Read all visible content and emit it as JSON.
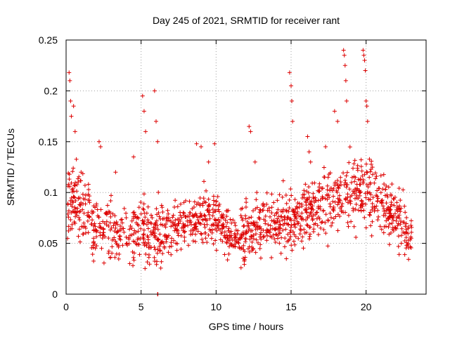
{
  "chart_data": {
    "type": "scatter",
    "title": "Day 245 of 2021, SRMTID for receiver rant",
    "xlabel": "GPS time / hours",
    "ylabel": "SRMTID / TECUs",
    "xlim": [
      0,
      24
    ],
    "ylim": [
      0,
      0.25
    ],
    "x_ticks": [
      0,
      5,
      10,
      15,
      20
    ],
    "x_tick_labels": [
      "0",
      "5",
      "10",
      "15",
      "20"
    ],
    "y_ticks": [
      0,
      0.05,
      0.1,
      0.15,
      0.2,
      0.25
    ],
    "y_tick_labels": [
      "0",
      "0.05",
      "0.1",
      "0.15",
      "0.2",
      "0.25"
    ],
    "grid": true,
    "marker": "+",
    "series_color": "#dd0000",
    "series": [
      {
        "name": "SRMTID",
        "description_envelope": "approximate trend",
        "trend_x": [
          0,
          0.5,
          1,
          2,
          3,
          4,
          5,
          6,
          7,
          8,
          9,
          10,
          11,
          12,
          13,
          14,
          15,
          16,
          17,
          18,
          19,
          20,
          21,
          22,
          23
        ],
        "trend_y": [
          0.09,
          0.1,
          0.085,
          0.065,
          0.065,
          0.06,
          0.065,
          0.06,
          0.065,
          0.07,
          0.075,
          0.075,
          0.055,
          0.06,
          0.07,
          0.07,
          0.075,
          0.08,
          0.085,
          0.095,
          0.1,
          0.105,
          0.09,
          0.075,
          0.055
        ],
        "spread": [
          0.03,
          0.035,
          0.03,
          0.025,
          0.025,
          0.025,
          0.025,
          0.025,
          0.02,
          0.02,
          0.022,
          0.02,
          0.02,
          0.022,
          0.025,
          0.025,
          0.025,
          0.025,
          0.028,
          0.028,
          0.03,
          0.03,
          0.025,
          0.022,
          0.02
        ],
        "outliers": [
          [
            0.2,
            0.218
          ],
          [
            0.25,
            0.21
          ],
          [
            0.3,
            0.19
          ],
          [
            0.35,
            0.175
          ],
          [
            0.5,
            0.185
          ],
          [
            0.6,
            0.16
          ],
          [
            1.0,
            0.12
          ],
          [
            2.2,
            0.15
          ],
          [
            2.3,
            0.145
          ],
          [
            3.3,
            0.12
          ],
          [
            4.5,
            0.135
          ],
          [
            5.1,
            0.195
          ],
          [
            5.2,
            0.18
          ],
          [
            5.3,
            0.16
          ],
          [
            5.9,
            0.2
          ],
          [
            6.0,
            0.17
          ],
          [
            6.1,
            0.15
          ],
          [
            8.7,
            0.148
          ],
          [
            9.0,
            0.145
          ],
          [
            9.5,
            0.13
          ],
          [
            9.9,
            0.148
          ],
          [
            12.2,
            0.165
          ],
          [
            12.3,
            0.16
          ],
          [
            12.6,
            0.13
          ],
          [
            14.9,
            0.218
          ],
          [
            15.0,
            0.205
          ],
          [
            15.05,
            0.19
          ],
          [
            15.1,
            0.17
          ],
          [
            16.1,
            0.155
          ],
          [
            16.2,
            0.14
          ],
          [
            16.3,
            0.13
          ],
          [
            17.3,
            0.145
          ],
          [
            17.9,
            0.18
          ],
          [
            18.1,
            0.17
          ],
          [
            18.5,
            0.24
          ],
          [
            18.55,
            0.235
          ],
          [
            18.6,
            0.225
          ],
          [
            18.65,
            0.21
          ],
          [
            18.7,
            0.19
          ],
          [
            19.8,
            0.24
          ],
          [
            19.85,
            0.235
          ],
          [
            19.9,
            0.23
          ],
          [
            19.95,
            0.22
          ],
          [
            20.0,
            0.19
          ],
          [
            20.05,
            0.185
          ],
          [
            20.1,
            0.17
          ],
          [
            6.1,
            0.0
          ],
          [
            6.12,
            0.0
          ]
        ],
        "n_points": 1400
      }
    ]
  }
}
